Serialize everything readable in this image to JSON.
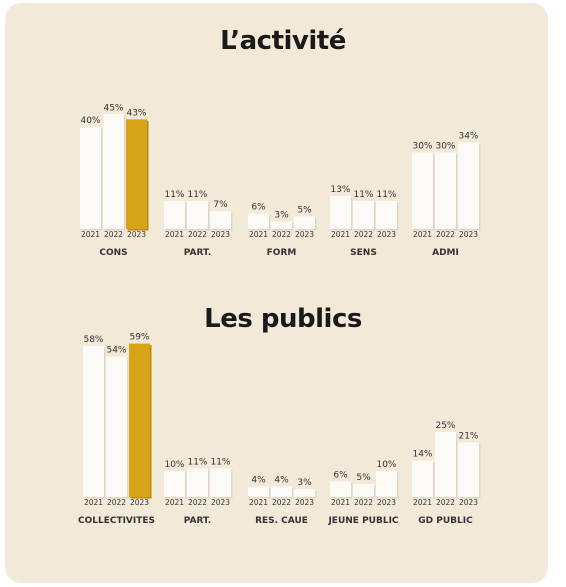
{
  "colors": {
    "background": "#f3e9d9",
    "bar": "#fcfaf6",
    "bar_edge": "#e0d6c6",
    "highlight": "#d6a419",
    "text": "#333333"
  },
  "chart_data": [
    {
      "type": "bar",
      "title": "L’activité",
      "years": [
        "2021",
        "2022",
        "2023"
      ],
      "highlight": {
        "group": 0,
        "bar": 2
      },
      "groups": [
        {
          "name": "CONS",
          "values": [
            40,
            45,
            43
          ]
        },
        {
          "name": "PART.",
          "values": [
            11,
            11,
            7
          ]
        },
        {
          "name": "FORM",
          "values": [
            6,
            3,
            5
          ]
        },
        {
          "name": "SENS",
          "values": [
            13,
            11,
            11
          ]
        },
        {
          "name": "ADMI",
          "values": [
            30,
            30,
            34
          ]
        }
      ]
    },
    {
      "type": "bar",
      "title": "Les publics",
      "years": [
        "2021",
        "2022",
        "2023"
      ],
      "highlight": {
        "group": 0,
        "bar": 2
      },
      "groups": [
        {
          "name": "COLLECTIVITES",
          "values": [
            58,
            54,
            59
          ]
        },
        {
          "name": "PART.",
          "values": [
            10,
            11,
            11
          ]
        },
        {
          "name": "RES. CAUE",
          "values": [
            4,
            4,
            3
          ]
        },
        {
          "name": "JEUNE PUBLIC",
          "values": [
            6,
            5,
            10
          ]
        },
        {
          "name": "GD PUBLIC",
          "values": [
            14,
            25,
            21
          ]
        }
      ]
    }
  ]
}
